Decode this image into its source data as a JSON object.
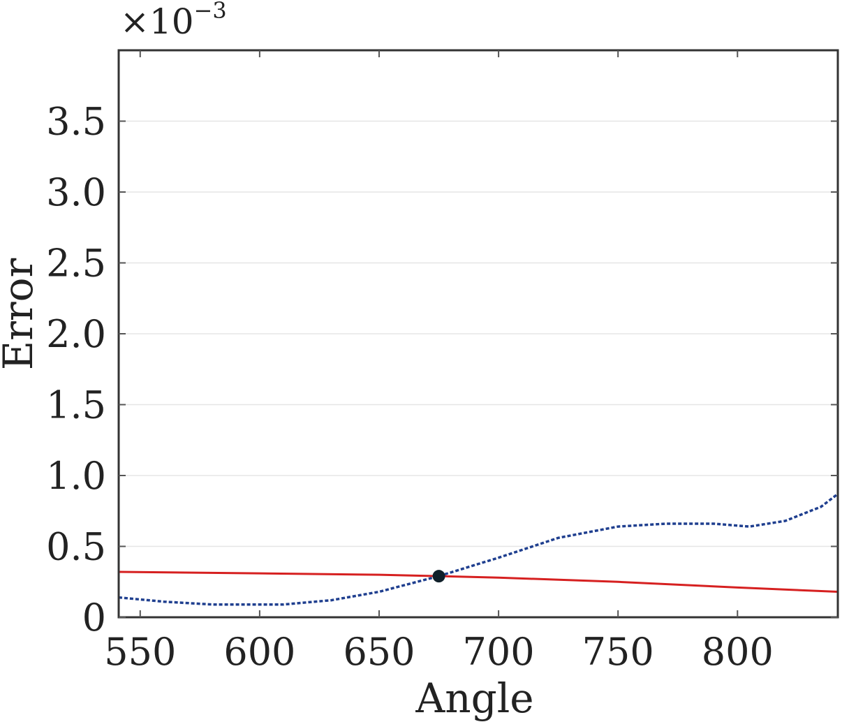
{
  "chart_data": {
    "type": "line",
    "xlabel": "Angle",
    "ylabel": "Error",
    "multiplier_label": "×10",
    "multiplier_exponent": "−3",
    "xlim": [
      541,
      842
    ],
    "ylim": [
      0,
      4.0
    ],
    "x_ticks": [
      550,
      600,
      650,
      700,
      750,
      800
    ],
    "x_tick_labels": [
      "550",
      "600",
      "650",
      "700",
      "750",
      "800"
    ],
    "y_ticks": [
      0,
      0.5,
      1.0,
      1.5,
      2.0,
      2.5,
      3.0,
      3.5
    ],
    "y_tick_labels": [
      "0",
      "0.5",
      "1.0",
      "1.5",
      "2.0",
      "2.5",
      "3.0",
      "3.5"
    ],
    "series": [
      {
        "style": "solid",
        "color": "#d62020",
        "x": [
          541,
          600,
          650,
          675,
          700,
          750,
          800,
          842
        ],
        "y": [
          0.32,
          0.31,
          0.3,
          0.29,
          0.28,
          0.25,
          0.21,
          0.18
        ]
      },
      {
        "style": "dotted",
        "color": "#1f3f8f",
        "x": [
          541,
          560,
          580,
          600,
          610,
          630,
          650,
          675,
          700,
          725,
          750,
          770,
          790,
          805,
          820,
          835,
          842
        ],
        "y": [
          0.14,
          0.11,
          0.09,
          0.09,
          0.09,
          0.12,
          0.18,
          0.29,
          0.42,
          0.56,
          0.64,
          0.66,
          0.66,
          0.64,
          0.68,
          0.78,
          0.87
        ]
      }
    ],
    "marker": {
      "x": 675,
      "y": 0.29,
      "color": "#10202a"
    }
  }
}
